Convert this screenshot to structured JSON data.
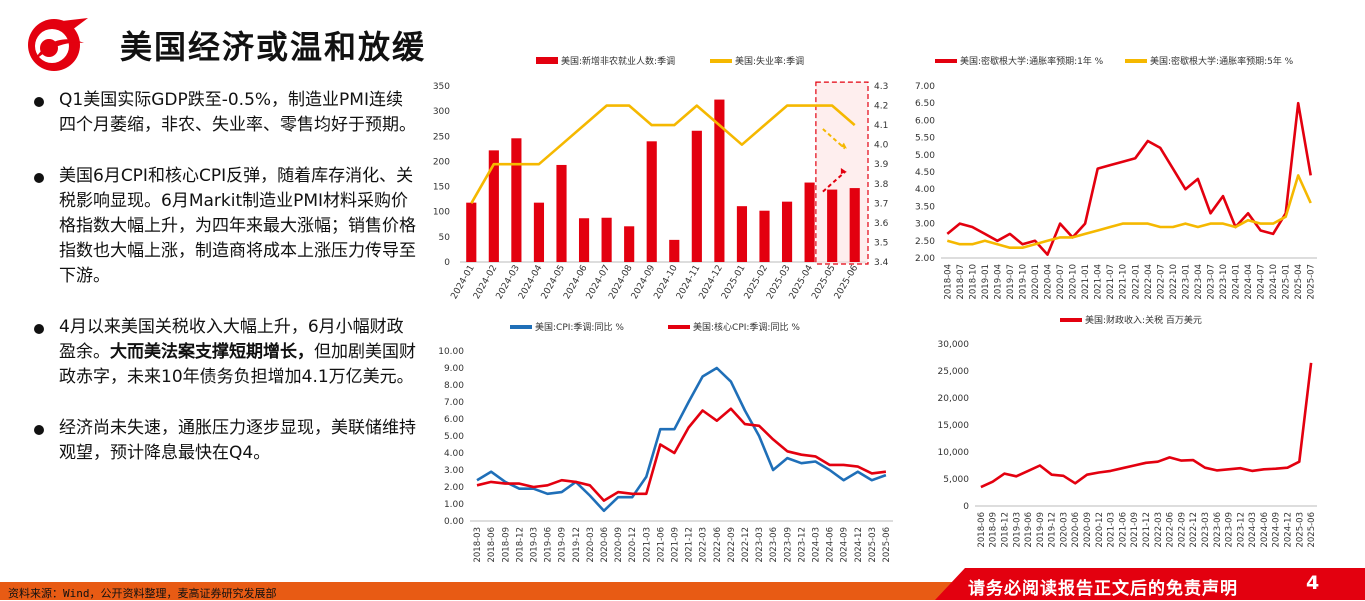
{
  "page": {
    "title": "美国经济或温和放缓",
    "bullets": [
      {
        "runs": [
          {
            "text": "Q1美国实际GDP跌至-0.5%，制造业PMI连续四个月萎缩，非农、失业率、零售均好于预期。",
            "bold": false
          }
        ]
      },
      {
        "runs": [
          {
            "text": "美国6月CPI和核心CPI反弹，随着库存消化、关税影响显现。6月Markit制造业PMI材料采购价格指数大幅上升，为四年来最大涨幅；销售价格指数也大幅上涨，制造商将成本上涨压力传导至下游。",
            "bold": false
          }
        ]
      },
      {
        "runs": [
          {
            "text": "4月以来美国关税收入大幅上升，6月小幅财政盈余。",
            "bold": false
          },
          {
            "text": "大而美法案支撑短期增长，",
            "bold": true
          },
          {
            "text": "但加剧美国财政赤字，未来10年债务负担增加4.1万亿美元。",
            "bold": false
          }
        ]
      },
      {
        "runs": [
          {
            "text": "经济尚未失速，通胀压力逐步显现，美联储维持观望，预计降息最快在Q4。",
            "bold": false
          }
        ]
      }
    ],
    "footer": {
      "source": "资料来源：Wind，公开资料整理，麦高证券研究发展部",
      "disclaimer": "请务必阅读报告正文后的免责声明",
      "page_number": "4"
    },
    "colors": {
      "red": "#e3000f",
      "yellow": "#f5b800",
      "blue": "#1f6fb8",
      "footer_orange": "#e85b14"
    }
  },
  "chart_data": [
    {
      "id": "payrolls",
      "type": "bar+line",
      "categories": [
        "2024-01",
        "2024-02",
        "2024-03",
        "2024-04",
        "2024-05",
        "2024-06",
        "2024-07",
        "2024-08",
        "2024-09",
        "2024-10",
        "2024-11",
        "2024-12",
        "2025-01",
        "2025-02",
        "2025-03",
        "2025-04",
        "2025-05",
        "2025-06"
      ],
      "bars": {
        "name": "美国:新增非农就业人数:季调",
        "color": "#e3000f",
        "values": [
          118,
          222,
          246,
          118,
          193,
          87,
          88,
          71,
          240,
          44,
          261,
          323,
          111,
          102,
          120,
          158,
          144,
          147
        ]
      },
      "line": {
        "name": "美国:失业率:季调",
        "color": "#f5b800",
        "values": [
          3.7,
          3.9,
          3.9,
          3.9,
          4.0,
          4.1,
          4.2,
          4.2,
          4.1,
          4.1,
          4.2,
          4.1,
          4.0,
          4.1,
          4.2,
          4.2,
          4.2,
          4.1
        ]
      },
      "y_left": {
        "range": [
          0,
          350
        ],
        "ticks": [
          0,
          50,
          100,
          150,
          200,
          250,
          300,
          350
        ]
      },
      "y_right": {
        "range": [
          3.4,
          4.3
        ],
        "ticks": [
          "3.4",
          "3.5",
          "3.6",
          "3.7",
          "3.8",
          "3.9",
          "4.0",
          "4.1",
          "4.2",
          "4.3"
        ]
      },
      "legend": "top",
      "highlight": "2025-05 to 2025-06"
    },
    {
      "id": "michigan",
      "type": "line",
      "x_labels": [
        "2018-04",
        "2018-07",
        "2018-10",
        "2019-01",
        "2019-04",
        "2019-07",
        "2019-10",
        "2020-01",
        "2020-04",
        "2020-07",
        "2020-10",
        "2021-01",
        "2021-04",
        "2021-07",
        "2021-10",
        "2022-01",
        "2022-04",
        "2022-07",
        "2022-10",
        "2023-01",
        "2023-04",
        "2023-07",
        "2023-10",
        "2024-01",
        "2024-04",
        "2024-07",
        "2024-10",
        "2025-01",
        "2025-04",
        "2025-07"
      ],
      "series": [
        {
          "name": "美国:密歇根大学:通胀率预期:1年 %",
          "color": "#e3000f",
          "values": [
            2.7,
            3.0,
            2.9,
            2.7,
            2.5,
            2.7,
            2.4,
            2.5,
            2.1,
            3.0,
            2.6,
            3.0,
            4.6,
            4.7,
            4.8,
            4.9,
            5.4,
            5.2,
            4.6,
            4.0,
            4.3,
            3.3,
            3.8,
            2.9,
            3.3,
            2.8,
            2.7,
            3.3,
            6.5,
            4.4
          ]
        },
        {
          "name": "美国:密歇根大学:通胀率预期:5年 %",
          "color": "#f5b800",
          "values": [
            2.5,
            2.4,
            2.4,
            2.5,
            2.4,
            2.3,
            2.3,
            2.4,
            2.5,
            2.6,
            2.6,
            2.7,
            2.8,
            2.9,
            3.0,
            3.0,
            3.0,
            2.9,
            2.9,
            3.0,
            2.9,
            3.0,
            3.0,
            2.9,
            3.1,
            3.0,
            3.0,
            3.2,
            4.4,
            3.6
          ]
        }
      ],
      "y": {
        "range": [
          2.0,
          7.0
        ],
        "ticks": [
          "2.00",
          "2.50",
          "3.00",
          "3.50",
          "4.00",
          "4.50",
          "5.00",
          "5.50",
          "6.00",
          "6.50",
          "7.00"
        ]
      },
      "legend": "top"
    },
    {
      "id": "cpi",
      "type": "line",
      "x_labels": [
        "2018-03",
        "2018-06",
        "2018-09",
        "2018-12",
        "2019-03",
        "2019-06",
        "2019-09",
        "2019-12",
        "2020-03",
        "2020-06",
        "2020-09",
        "2020-12",
        "2021-03",
        "2021-06",
        "2021-09",
        "2021-12",
        "2022-03",
        "2022-06",
        "2022-09",
        "2022-12",
        "2023-03",
        "2023-06",
        "2023-09",
        "2023-12",
        "2024-03",
        "2024-06",
        "2024-09",
        "2024-12",
        "2025-03",
        "2025-06"
      ],
      "series": [
        {
          "name": "美国:CPI:季调:同比 %",
          "color": "#1f6fb8",
          "values": [
            2.4,
            2.9,
            2.3,
            1.9,
            1.9,
            1.6,
            1.7,
            2.3,
            1.5,
            0.6,
            1.4,
            1.4,
            2.6,
            5.4,
            5.4,
            7.0,
            8.5,
            9.0,
            8.2,
            6.5,
            5.0,
            3.0,
            3.7,
            3.4,
            3.5,
            3.0,
            2.4,
            2.9,
            2.4,
            2.7
          ]
        },
        {
          "name": "美国:核心CPI:季调:同比 %",
          "color": "#e3000f",
          "values": [
            2.1,
            2.3,
            2.2,
            2.2,
            2.0,
            2.1,
            2.4,
            2.3,
            2.1,
            1.2,
            1.7,
            1.6,
            1.6,
            4.5,
            4.0,
            5.5,
            6.5,
            5.9,
            6.6,
            5.7,
            5.6,
            4.8,
            4.1,
            3.9,
            3.8,
            3.3,
            3.3,
            3.2,
            2.8,
            2.9
          ]
        }
      ],
      "y": {
        "range": [
          0,
          10
        ],
        "ticks": [
          "0.00",
          "1.00",
          "2.00",
          "3.00",
          "4.00",
          "5.00",
          "6.00",
          "7.00",
          "8.00",
          "9.00",
          "10.00"
        ]
      },
      "legend": "top"
    },
    {
      "id": "tariff",
      "type": "line",
      "x_labels": [
        "2018-06",
        "2018-09",
        "2018-12",
        "2019-03",
        "2019-06",
        "2019-09",
        "2019-12",
        "2020-03",
        "2020-06",
        "2020-09",
        "2020-12",
        "2021-03",
        "2021-06",
        "2021-09",
        "2021-12",
        "2022-03",
        "2022-06",
        "2022-09",
        "2022-12",
        "2023-03",
        "2023-06",
        "2023-09",
        "2023-12",
        "2024-03",
        "2024-06",
        "2024-09",
        "2024-12",
        "2025-03",
        "2025-06"
      ],
      "series": [
        {
          "name": "美国:财政收入:关税 百万美元",
          "color": "#e3000f",
          "values": [
            3500,
            4500,
            6000,
            5500,
            6500,
            7500,
            5800,
            5600,
            4200,
            5800,
            6200,
            6500,
            7000,
            7500,
            8000,
            8200,
            9000,
            8400,
            8500,
            7100,
            6600,
            6800,
            7000,
            6500,
            6800,
            6900,
            7100,
            8200,
            26500
          ]
        }
      ],
      "y": {
        "range": [
          0,
          30000
        ],
        "ticks": [
          "0",
          "5,000",
          "10,000",
          "15,000",
          "20,000",
          "25,000",
          "30,000"
        ]
      },
      "legend": "top"
    }
  ]
}
